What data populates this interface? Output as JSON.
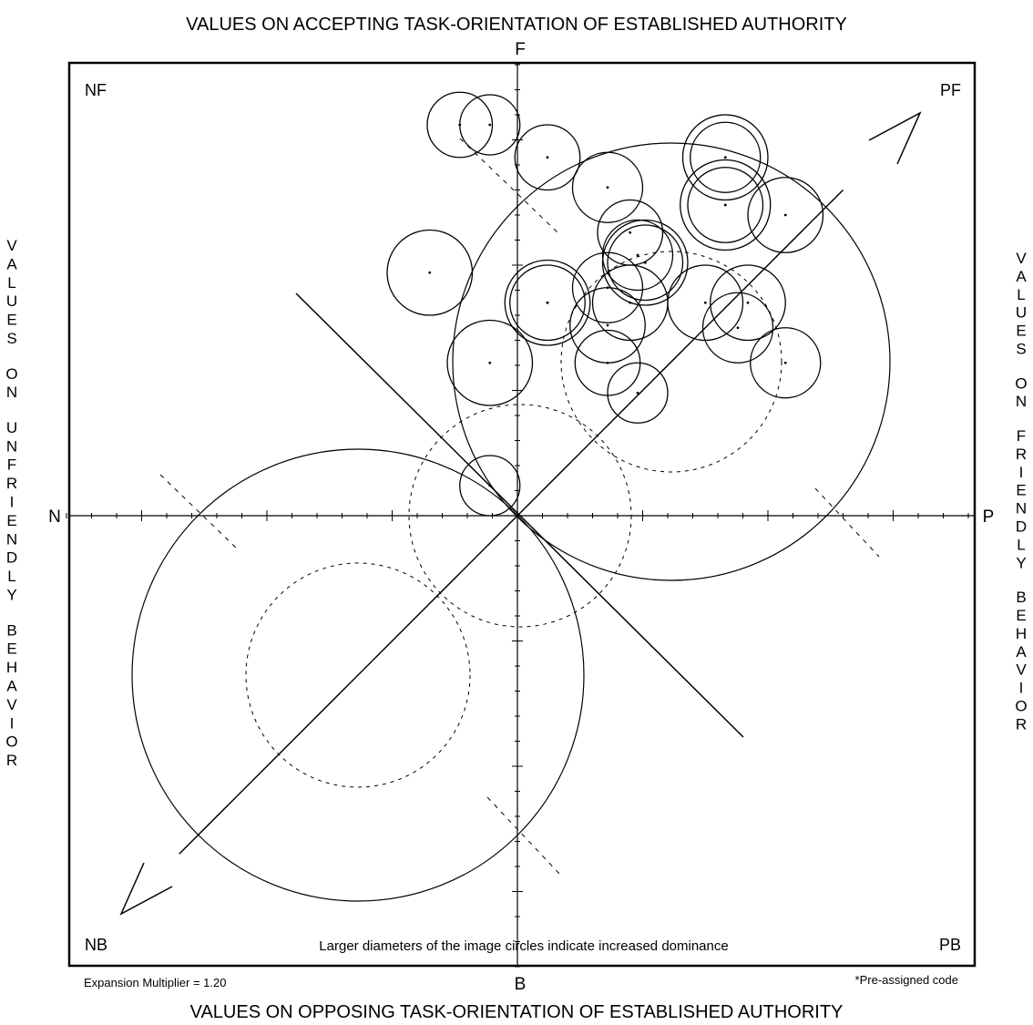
{
  "chart_data": {
    "type": "scatter",
    "title_top": "VALUES ON ACCEPTING TASK-ORIENTATION OF ESTABLISHED AUTHORITY",
    "title_bottom": "VALUES ON OPPOSING TASK-ORIENTATION OF ESTABLISHED AUTHORITY",
    "left_label": "VALUES ON UNFRIENDLY BEHAVIOR",
    "right_label": "VALUES ON FRIENDLY BEHAVIOR",
    "axis_ends": {
      "top": "F",
      "bottom": "B",
      "left": "N",
      "right": "P"
    },
    "corners": {
      "tl": "NF",
      "tr": "PF",
      "bl": "NB",
      "br": "PB"
    },
    "note": "Larger diameters of the image circles indicate increased dominance",
    "expansion": "Expansion Multiplier = 1.20",
    "preassigned": "*Pre-assigned code",
    "xlim": [
      -18,
      18
    ],
    "ylim": [
      -18,
      18
    ],
    "grid": false,
    "image_circles": [
      {
        "x": -2.3,
        "y": 15.6,
        "r": 1.3
      },
      {
        "x": -1.1,
        "y": 15.6,
        "r": 1.2
      },
      {
        "x": 1.2,
        "y": 14.3,
        "r": 1.3
      },
      {
        "x": 3.6,
        "y": 13.1,
        "r": 1.4
      },
      {
        "x": 8.3,
        "y": 14.3,
        "r": 1.7
      },
      {
        "x": 8.3,
        "y": 14.3,
        "r": 1.4
      },
      {
        "x": 8.3,
        "y": 12.4,
        "r": 1.5
      },
      {
        "x": 8.3,
        "y": 12.4,
        "r": 1.8
      },
      {
        "x": 10.7,
        "y": 12.0,
        "r": 1.5
      },
      {
        "x": 4.5,
        "y": 11.3,
        "r": 1.3
      },
      {
        "x": 4.8,
        "y": 10.4,
        "r": 1.4
      },
      {
        "x": 5.1,
        "y": 10.1,
        "r": 1.5
      },
      {
        "x": 5.1,
        "y": 10.1,
        "r": 1.7
      },
      {
        "x": 3.6,
        "y": 9.1,
        "r": 1.4
      },
      {
        "x": 4.5,
        "y": 8.5,
        "r": 1.5
      },
      {
        "x": 7.5,
        "y": 8.5,
        "r": 1.5
      },
      {
        "x": 9.2,
        "y": 8.5,
        "r": 1.5
      },
      {
        "x": 8.8,
        "y": 7.5,
        "r": 1.4
      },
      {
        "x": 1.2,
        "y": 8.5,
        "r": 1.5
      },
      {
        "x": 1.2,
        "y": 8.5,
        "r": 1.7
      },
      {
        "x": 3.6,
        "y": 7.6,
        "r": 1.5
      },
      {
        "x": 3.6,
        "y": 6.1,
        "r": 1.3
      },
      {
        "x": 10.7,
        "y": 6.1,
        "r": 1.4
      },
      {
        "x": -1.1,
        "y": 6.1,
        "r": 1.7
      },
      {
        "x": -3.5,
        "y": 9.7,
        "r": 1.7
      },
      {
        "x": 4.8,
        "y": 4.9,
        "r": 1.2
      },
      {
        "x": -1.1,
        "y": 1.2,
        "r": 1.2
      }
    ]
  }
}
